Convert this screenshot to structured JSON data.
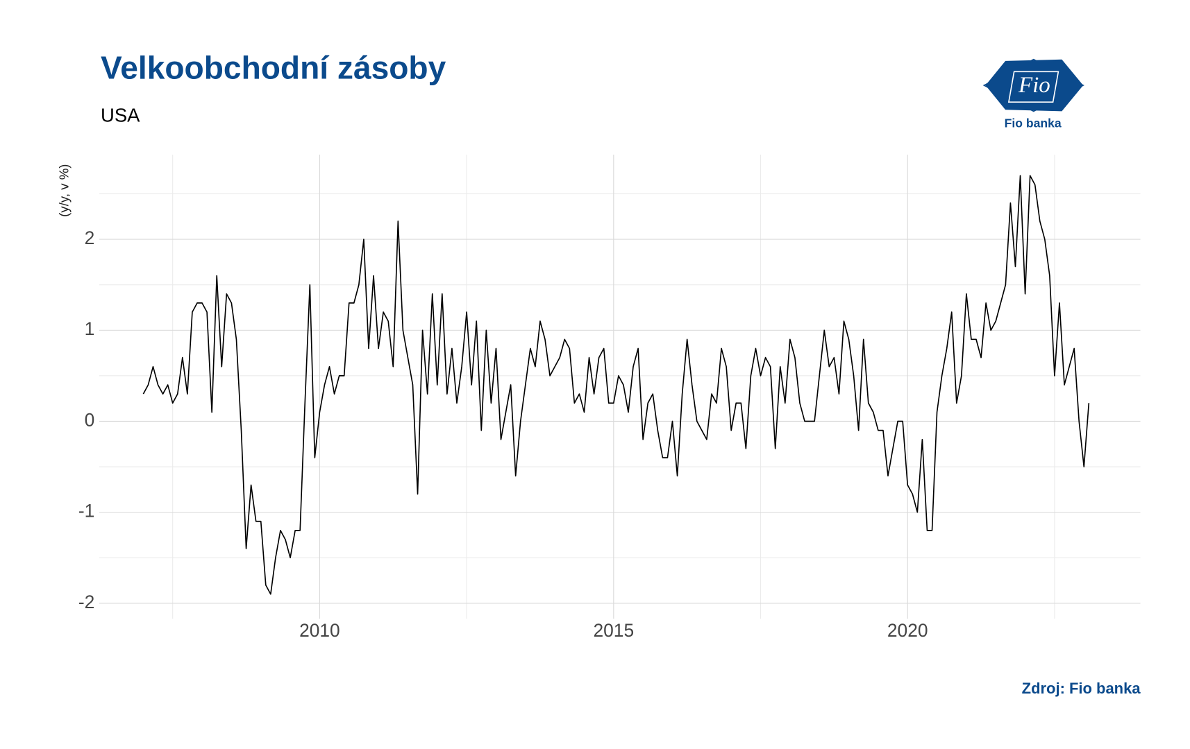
{
  "chart_data": {
    "type": "line",
    "title": "Velkoobchodní zásoby",
    "subtitle": "USA",
    "y_label": "(y/y, v %)",
    "source": "Zdroj: Fio banka",
    "logo": {
      "mark": "Fio",
      "name": "Fio banka"
    },
    "x": [
      "2007-01",
      "2007-02",
      "2007-03",
      "2007-04",
      "2007-05",
      "2007-06",
      "2007-07",
      "2007-08",
      "2007-09",
      "2007-10",
      "2007-11",
      "2007-12",
      "2008-01",
      "2008-02",
      "2008-03",
      "2008-04",
      "2008-05",
      "2008-06",
      "2008-07",
      "2008-08",
      "2008-09",
      "2008-10",
      "2008-11",
      "2008-12",
      "2009-01",
      "2009-02",
      "2009-03",
      "2009-04",
      "2009-05",
      "2009-06",
      "2009-07",
      "2009-08",
      "2009-09",
      "2009-10",
      "2009-11",
      "2009-12",
      "2010-01",
      "2010-02",
      "2010-03",
      "2010-04",
      "2010-05",
      "2010-06",
      "2010-07",
      "2010-08",
      "2010-09",
      "2010-10",
      "2010-11",
      "2010-12",
      "2011-01",
      "2011-02",
      "2011-03",
      "2011-04",
      "2011-05",
      "2011-06",
      "2011-07",
      "2011-08",
      "2011-09",
      "2011-10",
      "2011-11",
      "2011-12",
      "2012-01",
      "2012-02",
      "2012-03",
      "2012-04",
      "2012-05",
      "2012-06",
      "2012-07",
      "2012-08",
      "2012-09",
      "2012-10",
      "2012-11",
      "2012-12",
      "2013-01",
      "2013-02",
      "2013-03",
      "2013-04",
      "2013-05",
      "2013-06",
      "2013-07",
      "2013-08",
      "2013-09",
      "2013-10",
      "2013-11",
      "2013-12",
      "2014-01",
      "2014-02",
      "2014-03",
      "2014-04",
      "2014-05",
      "2014-06",
      "2014-07",
      "2014-08",
      "2014-09",
      "2014-10",
      "2014-11",
      "2014-12",
      "2015-01",
      "2015-02",
      "2015-03",
      "2015-04",
      "2015-05",
      "2015-06",
      "2015-07",
      "2015-08",
      "2015-09",
      "2015-10",
      "2015-11",
      "2015-12",
      "2016-01",
      "2016-02",
      "2016-03",
      "2016-04",
      "2016-05",
      "2016-06",
      "2016-07",
      "2016-08",
      "2016-09",
      "2016-10",
      "2016-11",
      "2016-12",
      "2017-01",
      "2017-02",
      "2017-03",
      "2017-04",
      "2017-05",
      "2017-06",
      "2017-07",
      "2017-08",
      "2017-09",
      "2017-10",
      "2017-11",
      "2017-12",
      "2018-01",
      "2018-02",
      "2018-03",
      "2018-04",
      "2018-05",
      "2018-06",
      "2018-07",
      "2018-08",
      "2018-09",
      "2018-10",
      "2018-11",
      "2018-12",
      "2019-01",
      "2019-02",
      "2019-03",
      "2019-04",
      "2019-05",
      "2019-06",
      "2019-07",
      "2019-08",
      "2019-09",
      "2019-10",
      "2019-11",
      "2019-12",
      "2020-01",
      "2020-02",
      "2020-03",
      "2020-04",
      "2020-05",
      "2020-06",
      "2020-07",
      "2020-08",
      "2020-09",
      "2020-10",
      "2020-11",
      "2020-12",
      "2021-01",
      "2021-02",
      "2021-03",
      "2021-04",
      "2021-05",
      "2021-06",
      "2021-07",
      "2021-08",
      "2021-09",
      "2021-10",
      "2021-11",
      "2021-12",
      "2022-01",
      "2022-02",
      "2022-03",
      "2022-04",
      "2022-05",
      "2022-06",
      "2022-07",
      "2022-08",
      "2022-09",
      "2022-10",
      "2022-11",
      "2022-12",
      "2023-01",
      "2023-02"
    ],
    "series": [
      {
        "color": "#000000",
        "values": [
          0.3,
          0.4,
          0.6,
          0.4,
          0.3,
          0.4,
          0.2,
          0.3,
          0.7,
          0.3,
          1.2,
          1.3,
          1.3,
          1.2,
          0.1,
          1.6,
          0.6,
          1.4,
          1.3,
          0.9,
          -0.1,
          -1.4,
          -0.7,
          -1.1,
          -1.1,
          -1.8,
          -1.9,
          -1.5,
          -1.2,
          -1.3,
          -1.5,
          -1.2,
          -1.2,
          0.2,
          1.5,
          -0.4,
          0.1,
          0.4,
          0.6,
          0.3,
          0.5,
          0.5,
          1.3,
          1.3,
          1.5,
          2.0,
          0.8,
          1.6,
          0.8,
          1.2,
          1.1,
          0.6,
          2.2,
          1.0,
          0.7,
          0.4,
          -0.8,
          1.0,
          0.3,
          1.4,
          0.4,
          1.4,
          0.3,
          0.8,
          0.2,
          0.6,
          1.2,
          0.4,
          1.1,
          -0.1,
          1.0,
          0.2,
          0.8,
          -0.2,
          0.1,
          0.4,
          -0.6,
          0.0,
          0.4,
          0.8,
          0.6,
          1.1,
          0.9,
          0.5,
          0.6,
          0.7,
          0.9,
          0.8,
          0.2,
          0.3,
          0.1,
          0.7,
          0.3,
          0.7,
          0.8,
          0.2,
          0.2,
          0.5,
          0.4,
          0.1,
          0.6,
          0.8,
          -0.2,
          0.2,
          0.3,
          -0.1,
          -0.4,
          -0.4,
          0.0,
          -0.6,
          0.3,
          0.9,
          0.4,
          0.0,
          -0.1,
          -0.2,
          0.3,
          0.2,
          0.8,
          0.6,
          -0.1,
          0.2,
          0.2,
          -0.3,
          0.5,
          0.8,
          0.5,
          0.7,
          0.6,
          -0.3,
          0.6,
          0.2,
          0.9,
          0.7,
          0.2,
          0.0,
          0.0,
          0.0,
          0.5,
          1.0,
          0.6,
          0.7,
          0.3,
          1.1,
          0.9,
          0.5,
          -0.1,
          0.9,
          0.2,
          0.1,
          -0.1,
          -0.1,
          -0.6,
          -0.3,
          0.0,
          0.0,
          -0.7,
          -0.8,
          -1.0,
          -0.2,
          -1.2,
          -1.2,
          0.1,
          0.5,
          0.8,
          1.2,
          0.2,
          0.5,
          1.4,
          0.9,
          0.9,
          0.7,
          1.3,
          1.0,
          1.1,
          1.3,
          1.5,
          2.4,
          1.7,
          2.7,
          1.4,
          2.7,
          2.6,
          2.2,
          2.0,
          1.6,
          0.5,
          1.3,
          0.4,
          0.6,
          0.8,
          0.0,
          -0.5,
          0.2
        ]
      }
    ],
    "xlim": [
      2006.25,
      2023.96
    ],
    "xticks": [
      2010,
      2015,
      2020
    ],
    "ylim": [
      -2.17,
      2.93
    ],
    "yticks": [
      -2,
      -1,
      0,
      1,
      2
    ],
    "grid": true
  }
}
